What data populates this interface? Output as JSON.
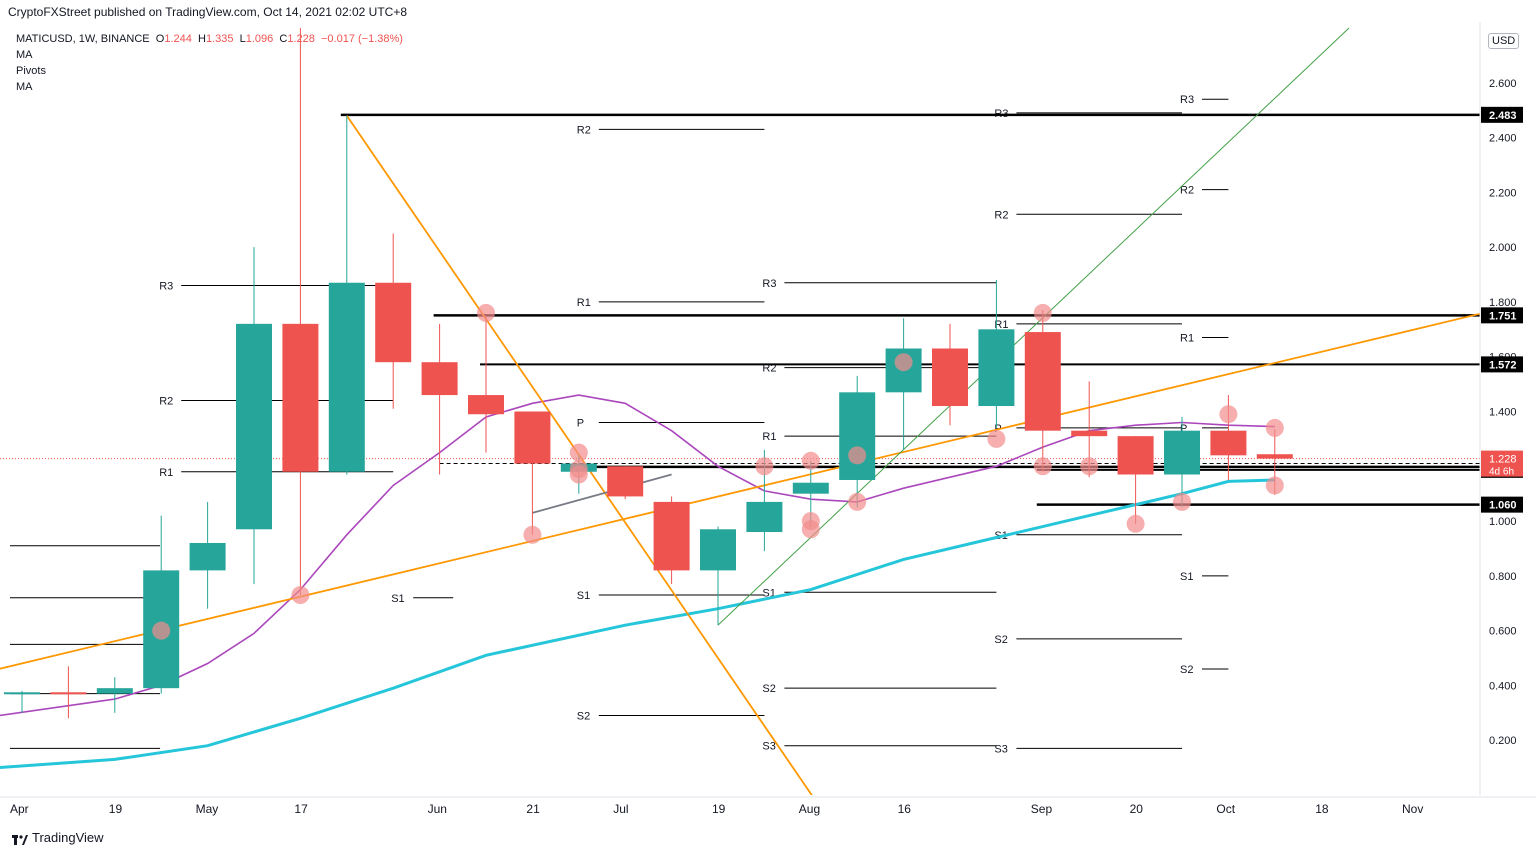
{
  "header": {
    "published": "CryptoFXStreet published on TradingView.com, Oct 14, 2021 02:02 UTC+8"
  },
  "legend": {
    "symbol": "MATICUSD, 1W, BINANCE",
    "open_label": "O",
    "open": "1.244",
    "high_label": "H",
    "high": "1.335",
    "low_label": "L",
    "low": "1.096",
    "close_label": "C",
    "close": "1.228",
    "change": "−0.017 (−1.38%)",
    "indicators": [
      "MA",
      "Pivots",
      "MA"
    ]
  },
  "footer": {
    "brand": "TradingView"
  },
  "axis": {
    "currency": "USD"
  },
  "colors": {
    "bull": "#26a69a",
    "bear": "#ef5350",
    "ma_fast": "#ab47bc",
    "ma_slow": "#26c6da",
    "trend_orange": "#ff9800",
    "trend_green": "#43a047",
    "marker": "#f28b8b",
    "level": "#000000"
  },
  "chart_data": {
    "type": "candlestick",
    "x_labels": [
      {
        "week": 0,
        "label": "Apr"
      },
      {
        "week": 2,
        "label": "19"
      },
      {
        "week": 4,
        "label": "May"
      },
      {
        "week": 6,
        "label": "17"
      },
      {
        "week": 9,
        "label": "Jun"
      },
      {
        "week": 11,
        "label": "21"
      },
      {
        "week": 13,
        "label": "Jul"
      },
      {
        "week": 15,
        "label": "19"
      },
      {
        "week": 17,
        "label": "Aug"
      },
      {
        "week": 19,
        "label": "16"
      },
      {
        "week": 22,
        "label": "Sep"
      },
      {
        "week": 24,
        "label": "20"
      },
      {
        "week": 26,
        "label": "Oct"
      },
      {
        "week": 28,
        "label": "18"
      },
      {
        "week": 30,
        "label": "Nov"
      }
    ],
    "y_ticks": [
      0.2,
      0.4,
      0.6,
      0.8,
      1.0,
      1.2,
      1.4,
      1.6,
      1.8,
      2.0,
      2.2,
      2.4,
      2.6
    ],
    "y_tick_labels": [
      "0.200",
      "0.400",
      "0.600",
      "0.800",
      "1.000",
      "1.200",
      "1.400",
      "1.600",
      "1.800",
      "2.000",
      "2.200",
      "2.400",
      "2.600"
    ],
    "ylim": [
      0.0,
      2.8
    ],
    "candles": [
      {
        "o": 0.37,
        "h": 0.38,
        "l": 0.3,
        "c": 0.375
      },
      {
        "o": 0.375,
        "h": 0.47,
        "l": 0.28,
        "c": 0.37
      },
      {
        "o": 0.37,
        "h": 0.43,
        "l": 0.3,
        "c": 0.39
      },
      {
        "o": 0.39,
        "h": 1.02,
        "l": 0.37,
        "c": 0.82
      },
      {
        "o": 0.82,
        "h": 1.07,
        "l": 0.68,
        "c": 0.92
      },
      {
        "o": 0.97,
        "h": 2.0,
        "l": 0.77,
        "c": 1.72
      },
      {
        "o": 1.72,
        "h": 2.8,
        "l": 0.73,
        "c": 1.18
      },
      {
        "o": 1.18,
        "h": 2.48,
        "l": 1.17,
        "c": 1.87
      },
      {
        "o": 1.87,
        "h": 2.05,
        "l": 1.41,
        "c": 1.58
      },
      {
        "o": 1.58,
        "h": 1.72,
        "l": 1.17,
        "c": 1.46
      },
      {
        "o": 1.46,
        "h": 1.75,
        "l": 1.25,
        "c": 1.39
      },
      {
        "o": 1.4,
        "h": 1.4,
        "l": 0.95,
        "c": 1.21
      },
      {
        "o": 1.18,
        "h": 1.24,
        "l": 1.1,
        "c": 1.21
      },
      {
        "o": 1.2,
        "h": 1.2,
        "l": 1.08,
        "c": 1.09
      },
      {
        "o": 1.07,
        "h": 1.09,
        "l": 0.77,
        "c": 0.82
      },
      {
        "o": 0.82,
        "h": 0.98,
        "l": 0.62,
        "c": 0.97
      },
      {
        "o": 0.96,
        "h": 1.26,
        "l": 0.89,
        "c": 1.07
      },
      {
        "o": 1.1,
        "h": 1.22,
        "l": 0.98,
        "c": 1.14
      },
      {
        "o": 1.15,
        "h": 1.53,
        "l": 1.05,
        "c": 1.47
      },
      {
        "o": 1.47,
        "h": 1.74,
        "l": 1.26,
        "c": 1.63
      },
      {
        "o": 1.63,
        "h": 1.72,
        "l": 1.35,
        "c": 1.42
      },
      {
        "o": 1.42,
        "h": 1.88,
        "l": 1.34,
        "c": 1.7
      },
      {
        "o": 1.69,
        "h": 1.77,
        "l": 1.18,
        "c": 1.33
      },
      {
        "o": 1.33,
        "h": 1.51,
        "l": 1.16,
        "c": 1.31
      },
      {
        "o": 1.31,
        "h": 1.31,
        "l": 0.99,
        "c": 1.17
      },
      {
        "o": 1.17,
        "h": 1.38,
        "l": 1.05,
        "c": 1.33
      },
      {
        "o": 1.33,
        "h": 1.46,
        "l": 1.15,
        "c": 1.24
      },
      {
        "o": 1.244,
        "h": 1.335,
        "l": 1.096,
        "c": 1.228
      }
    ],
    "ma_fast": [
      {
        "w": -0.5,
        "v": 0.29
      },
      {
        "w": 2,
        "v": 0.35
      },
      {
        "w": 3,
        "v": 0.4
      },
      {
        "w": 4,
        "v": 0.48
      },
      {
        "w": 5,
        "v": 0.59
      },
      {
        "w": 6,
        "v": 0.75
      },
      {
        "w": 7,
        "v": 0.95
      },
      {
        "w": 8,
        "v": 1.13
      },
      {
        "w": 9,
        "v": 1.25
      },
      {
        "w": 10,
        "v": 1.38
      },
      {
        "w": 11,
        "v": 1.43
      },
      {
        "w": 12,
        "v": 1.46
      },
      {
        "w": 13,
        "v": 1.43
      },
      {
        "w": 14,
        "v": 1.33
      },
      {
        "w": 15,
        "v": 1.2
      },
      {
        "w": 16,
        "v": 1.11
      },
      {
        "w": 17,
        "v": 1.08
      },
      {
        "w": 18,
        "v": 1.07
      },
      {
        "w": 19,
        "v": 1.12
      },
      {
        "w": 20,
        "v": 1.16
      },
      {
        "w": 21,
        "v": 1.2
      },
      {
        "w": 22,
        "v": 1.27
      },
      {
        "w": 23,
        "v": 1.33
      },
      {
        "w": 24,
        "v": 1.35
      },
      {
        "w": 25,
        "v": 1.36
      },
      {
        "w": 26,
        "v": 1.35
      },
      {
        "w": 27,
        "v": 1.345
      }
    ],
    "ma_slow": [
      {
        "w": -0.5,
        "v": 0.1
      },
      {
        "w": 2,
        "v": 0.13
      },
      {
        "w": 4,
        "v": 0.18
      },
      {
        "w": 6,
        "v": 0.28
      },
      {
        "w": 8,
        "v": 0.39
      },
      {
        "w": 10,
        "v": 0.51
      },
      {
        "w": 13,
        "v": 0.62
      },
      {
        "w": 15,
        "v": 0.68
      },
      {
        "w": 17,
        "v": 0.75
      },
      {
        "w": 19,
        "v": 0.86
      },
      {
        "w": 21,
        "v": 0.94
      },
      {
        "w": 23,
        "v": 1.02
      },
      {
        "w": 25,
        "v": 1.1
      },
      {
        "w": 26,
        "v": 1.145
      },
      {
        "w": 27,
        "v": 1.15
      }
    ],
    "price_markers": [
      {
        "w": 3,
        "v": 0.6
      },
      {
        "w": 6,
        "v": 0.73
      },
      {
        "w": 10,
        "v": 1.76
      },
      {
        "w": 11,
        "v": 0.95
      },
      {
        "w": 12,
        "v": 1.25
      },
      {
        "w": 12,
        "v": 1.17
      },
      {
        "w": 12,
        "v": 1.19
      },
      {
        "w": 16,
        "v": 1.2
      },
      {
        "w": 17,
        "v": 1.22
      },
      {
        "w": 17,
        "v": 1.0
      },
      {
        "w": 17,
        "v": 0.97
      },
      {
        "w": 18,
        "v": 1.07
      },
      {
        "w": 18,
        "v": 1.24
      },
      {
        "w": 19,
        "v": 1.58
      },
      {
        "w": 21,
        "v": 1.3
      },
      {
        "w": 22,
        "v": 1.76
      },
      {
        "w": 22,
        "v": 1.2
      },
      {
        "w": 23,
        "v": 1.2
      },
      {
        "w": 24,
        "v": 0.99
      },
      {
        "w": 25,
        "v": 1.07
      },
      {
        "w": 26,
        "v": 1.39
      },
      {
        "w": 27,
        "v": 1.34
      },
      {
        "w": 27,
        "v": 1.13
      }
    ],
    "trendlines": [
      {
        "color": "orange",
        "from": {
          "w": -0.5,
          "v": 0.46
        },
        "to": {
          "w": 31.5,
          "v": 1.76
        }
      },
      {
        "color": "orange",
        "from": {
          "w": 7,
          "v": 2.48
        },
        "to": {
          "w": 17.1,
          "v": -0.02
        }
      },
      {
        "color": "green",
        "from": {
          "w": 15,
          "v": 0.62
        },
        "to": {
          "w": 28.6,
          "v": 2.8
        }
      },
      {
        "color": "gray",
        "from": {
          "w": 11,
          "v": 1.03
        },
        "to": {
          "w": 14,
          "v": 1.17
        }
      }
    ],
    "levels": [
      {
        "v": 2.483,
        "label": "2.483",
        "from_w": 7,
        "heavy": true
      },
      {
        "v": 1.751,
        "label": "1.751",
        "from_w": 9,
        "heavy": true
      },
      {
        "v": 1.572,
        "label": "1.572",
        "from_w": 10,
        "heavy": false
      },
      {
        "v": 1.198,
        "label": "1.198",
        "from_w": 12,
        "heavy": true
      },
      {
        "v": 1.187,
        "label": "1.187",
        "from_w": 22,
        "heavy": false
      },
      {
        "v": 1.06,
        "label": "1.060",
        "from_w": 22,
        "heavy": true
      }
    ],
    "dashed_level": {
      "v": 1.21,
      "from_w": 9
    },
    "current_price": {
      "v": 1.228,
      "label": "1.228",
      "countdown": "4d 6h"
    },
    "pivots": [
      {
        "label": "R3",
        "v": 1.86,
        "w0": 3,
        "w1": 8
      },
      {
        "label": "R2",
        "v": 1.44,
        "w0": 3,
        "w1": 8
      },
      {
        "label": "R1",
        "v": 1.18,
        "w0": 3,
        "w1": 8
      },
      {
        "label": "S1",
        "v": 0.72,
        "w0": 8,
        "w1": 8
      },
      {
        "label": "R2",
        "v": 2.43,
        "w0": 12,
        "w1": 16
      },
      {
        "label": "R1",
        "v": 1.8,
        "w0": 12,
        "w1": 16
      },
      {
        "label": "P",
        "v": 1.36,
        "w0": 12,
        "w1": 16
      },
      {
        "label": "S1",
        "v": 0.73,
        "w0": 12,
        "w1": 16
      },
      {
        "label": "S2",
        "v": 0.29,
        "w0": 12,
        "w1": 16
      },
      {
        "label": "R3",
        "v": 1.87,
        "w0": 16,
        "w1": 21
      },
      {
        "label": "R2",
        "v": 1.56,
        "w0": 16,
        "w1": 21
      },
      {
        "label": "R1",
        "v": 1.31,
        "w0": 16,
        "w1": 21
      },
      {
        "label": "S1",
        "v": 0.74,
        "w0": 16,
        "w1": 21
      },
      {
        "label": "S2",
        "v": 0.39,
        "w0": 16,
        "w1": 21
      },
      {
        "label": "S3",
        "v": 0.18,
        "w0": 16,
        "w1": 21
      },
      {
        "label": "R3",
        "v": 2.49,
        "w0": 21,
        "w1": 25
      },
      {
        "label": "R2",
        "v": 2.12,
        "w0": 21,
        "w1": 25
      },
      {
        "label": "R1",
        "v": 1.72,
        "w0": 21,
        "w1": 25
      },
      {
        "label": "P",
        "v": 1.34,
        "w0": 21,
        "w1": 25
      },
      {
        "label": "S1",
        "v": 0.95,
        "w0": 21,
        "w1": 25
      },
      {
        "label": "S2",
        "v": 0.57,
        "w0": 21,
        "w1": 25
      },
      {
        "label": "S3",
        "v": 0.17,
        "w0": 21,
        "w1": 25
      },
      {
        "label": "R3",
        "v": 2.54,
        "w0": 25,
        "w1": 26
      },
      {
        "label": "R2",
        "v": 2.21,
        "w0": 25,
        "w1": 26
      },
      {
        "label": "R1",
        "v": 1.67,
        "w0": 25,
        "w1": 26
      },
      {
        "label": "P",
        "v": 1.34,
        "w0": 25,
        "w1": 26
      },
      {
        "label": "S1",
        "v": 0.8,
        "w0": 25,
        "w1": 26
      },
      {
        "label": "S2",
        "v": 0.46,
        "w0": 25,
        "w1": 26
      }
    ],
    "left_segments": [
      {
        "v": 0.91
      },
      {
        "v": 0.72
      },
      {
        "v": 0.55
      },
      {
        "v": 0.37
      },
      {
        "v": 0.17
      }
    ]
  }
}
